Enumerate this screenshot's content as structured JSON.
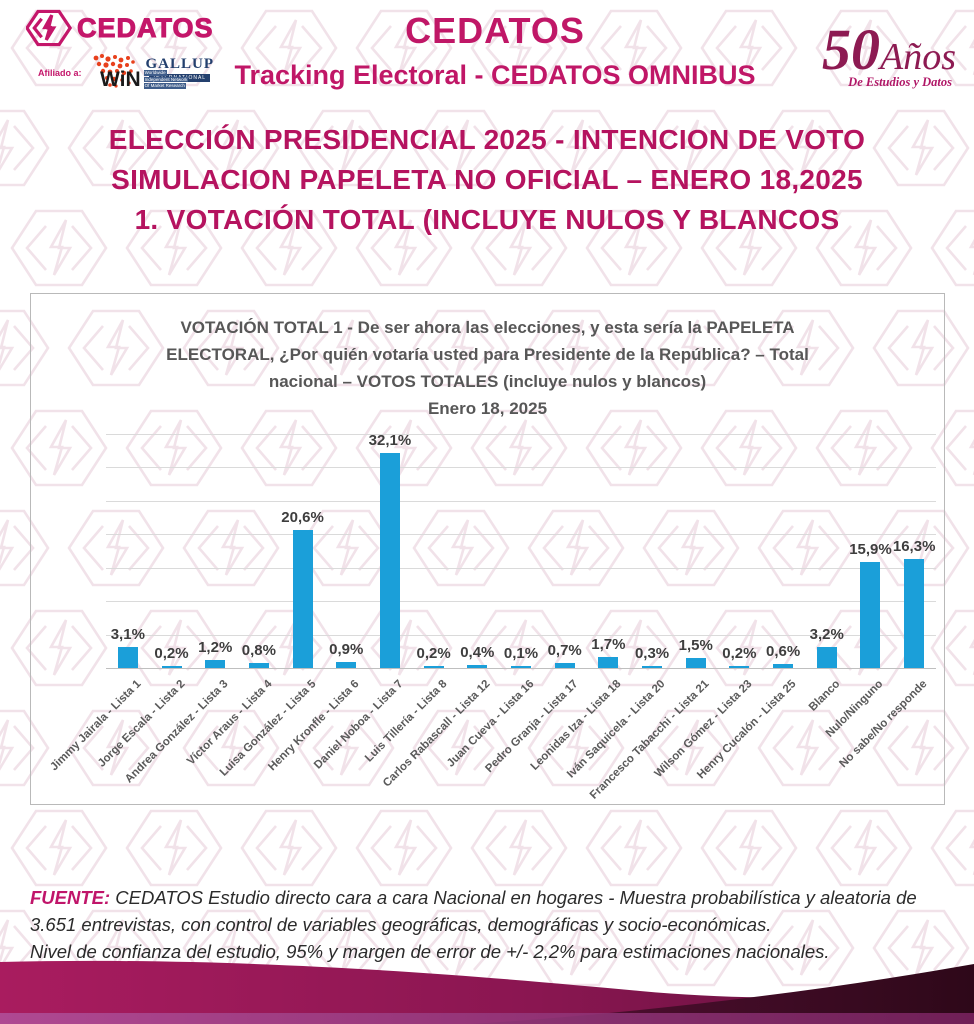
{
  "colors": {
    "brand_magenta": "#C4166A",
    "title_magenta": "#B5135F",
    "bar_blue": "#1B9FD9",
    "anniversary_maroon": "#8D1A52",
    "wave_dark": "#3C0C27"
  },
  "header": {
    "logo": {
      "brand": "CEDATOS",
      "affiliate_label": "Afiliado a:",
      "gallup": "GALLUP",
      "gallup_sub": "INTERNATIONAL",
      "win": "WiN",
      "win_sub_lines": [
        "Worldwide",
        "Independent Network",
        "Of Market Research"
      ]
    },
    "title": "CEDATOS",
    "subtitle": "Tracking Electoral - CEDATOS OMNIBUS",
    "anniversary": {
      "number": "50",
      "word": "Años",
      "tagline": "De Estudios y Datos"
    }
  },
  "page_title": {
    "line1": "ELECCIÓN PRESIDENCIAL 2025 - INTENCION DE VOTO",
    "line2": "SIMULACION PAPELETA NO OFICIAL – ENERO 18,2025",
    "line3": "1. VOTACIÓN TOTAL (INCLUYE NULOS Y BLANCOS"
  },
  "chart_data": {
    "type": "bar",
    "title_lines": [
      "VOTACIÓN TOTAL  1 -    De ser ahora las elecciones, y esta sería la PAPELETA",
      "ELECTORAL, ¿Por quién votaría usted para Presidente de la República? – Total",
      "nacional – VOTOS TOTALES  (incluye nulos y blancos)"
    ],
    "date_line": "Enero 18, 2025",
    "categories": [
      "Jimmy Jairala - Lista 1",
      "Jorge Escala - Lista 2",
      "Andrea González - Lista 3",
      "Víctor Araus - Lista 4",
      "Luisa González - Lista 5",
      "Henry Kronfle - Lista 6",
      "Daniel Noboa - Lista 7",
      "Luis Tillería - Lista 8",
      "Carlos Rabascall - Lista 12",
      "Juan Cueva - Lista 16",
      "Pedro Granja - Lista 17",
      "Leonidas Iza - Lista 18",
      "Iván Saquicela - Lista 20",
      "Francesco Tabacchi - Lista 21",
      "Wilson Gómez - Lista 23",
      "Henry Cucalón - Lista 25",
      "Blanco",
      "Nulo/Ninguno",
      "No sabe/No responde"
    ],
    "values": [
      3.1,
      0.2,
      1.2,
      0.8,
      20.6,
      0.9,
      32.1,
      0.2,
      0.4,
      0.1,
      0.7,
      1.7,
      0.3,
      1.5,
      0.2,
      0.6,
      3.2,
      15.9,
      16.3
    ],
    "labels": [
      "3,1%",
      "0,2%",
      "1,2%",
      "0,8%",
      "20,6%",
      "0,9%",
      "32,1%",
      "0,2%",
      "0,4%",
      "0,1%",
      "0,7%",
      "1,7%",
      "0,3%",
      "1,5%",
      "0,2%",
      "0,6%",
      "3,2%",
      "15,9%",
      "16,3%"
    ],
    "ylim": [
      0,
      35
    ],
    "grid_step": 5,
    "grid": true,
    "legend": false,
    "bar_color": "#1B9FD9",
    "xlabel": "",
    "ylabel": ""
  },
  "footer": {
    "source_label": "FUENTE:",
    "line1": " CEDATOS Estudio directo cara a cara Nacional en hogares - Muestra probabilística y aleatoria de 3.651 entrevistas, con control de variables geográficas, demográficas y socio-económicas.",
    "line2": "Nivel de confianza del estudio, 95% y margen de error de +/- 2,2% para estimaciones nacionales."
  }
}
